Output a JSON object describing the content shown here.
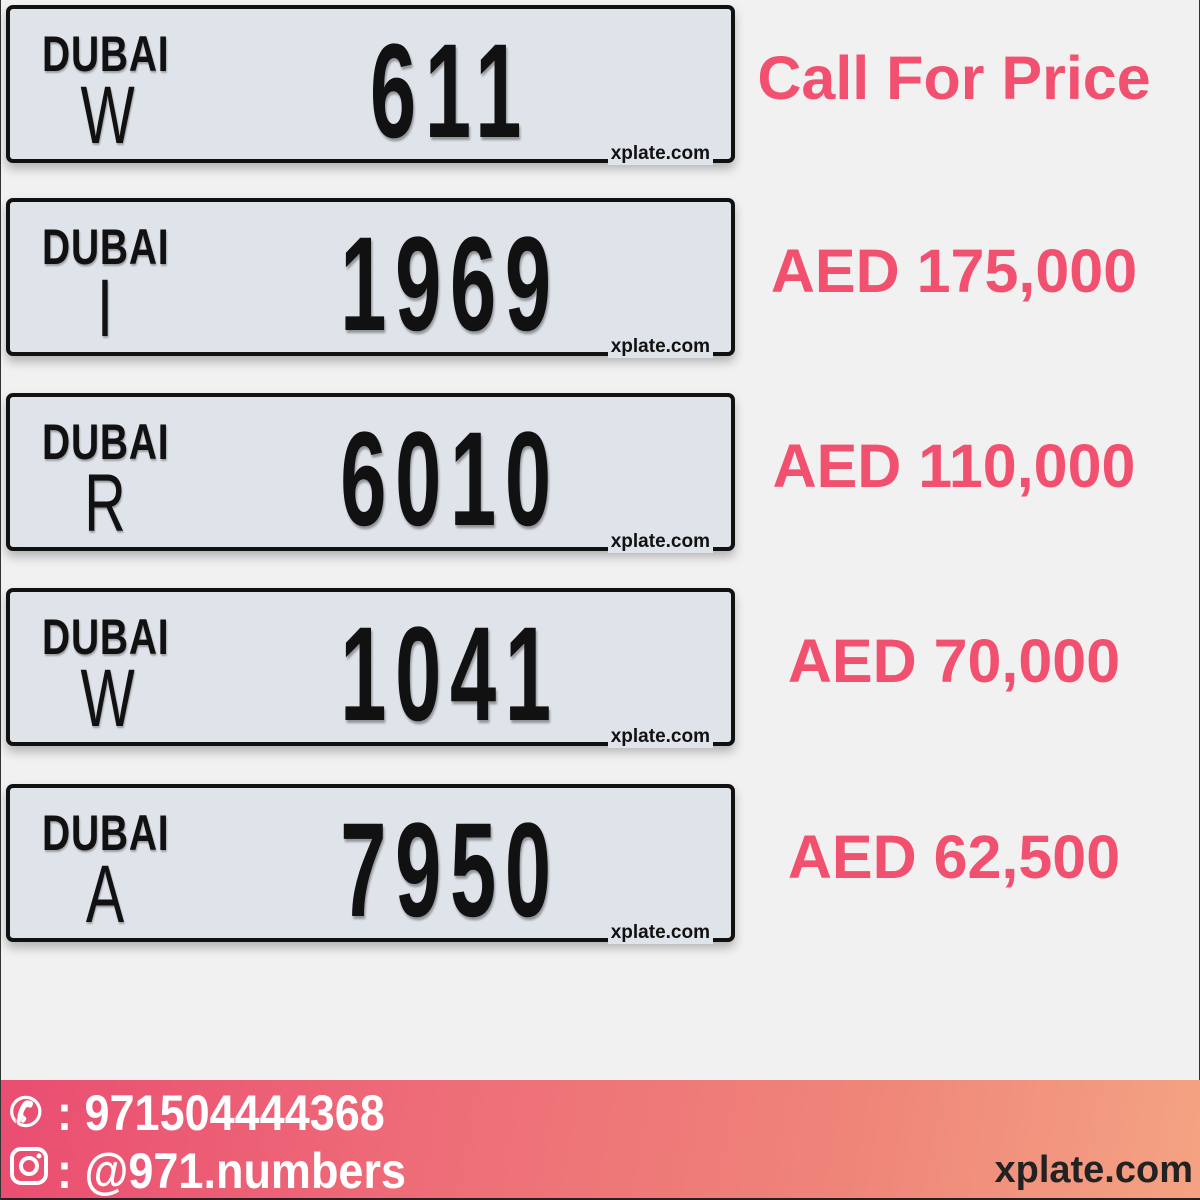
{
  "plates": [
    {
      "emirate": "DUBAI",
      "code": "W",
      "number": "611",
      "watermark": "xplate.com",
      "price": "Call For Price"
    },
    {
      "emirate": "DUBAI",
      "code": "I",
      "number": "1969",
      "watermark": "xplate.com",
      "price": "AED 175,000"
    },
    {
      "emirate": "DUBAI",
      "code": "R",
      "number": "6010",
      "watermark": "xplate.com",
      "price": "AED 110,000"
    },
    {
      "emirate": "DUBAI",
      "code": "W",
      "number": "1041",
      "watermark": "xplate.com",
      "price": "AED 70,000"
    },
    {
      "emirate": "DUBAI",
      "code": "A",
      "number": "7950",
      "watermark": "xplate.com",
      "price": "AED 62,500"
    }
  ],
  "footer": {
    "phone": ": 971504444368",
    "instagram": ": @971.numbers",
    "site": "xplate.com",
    "phone_icon": "phone-icon",
    "instagram_icon": "instagram-icon"
  },
  "colors": {
    "price": "#f2506f",
    "footer_start": "#ea4d71",
    "footer_end": "#f4a383"
  }
}
